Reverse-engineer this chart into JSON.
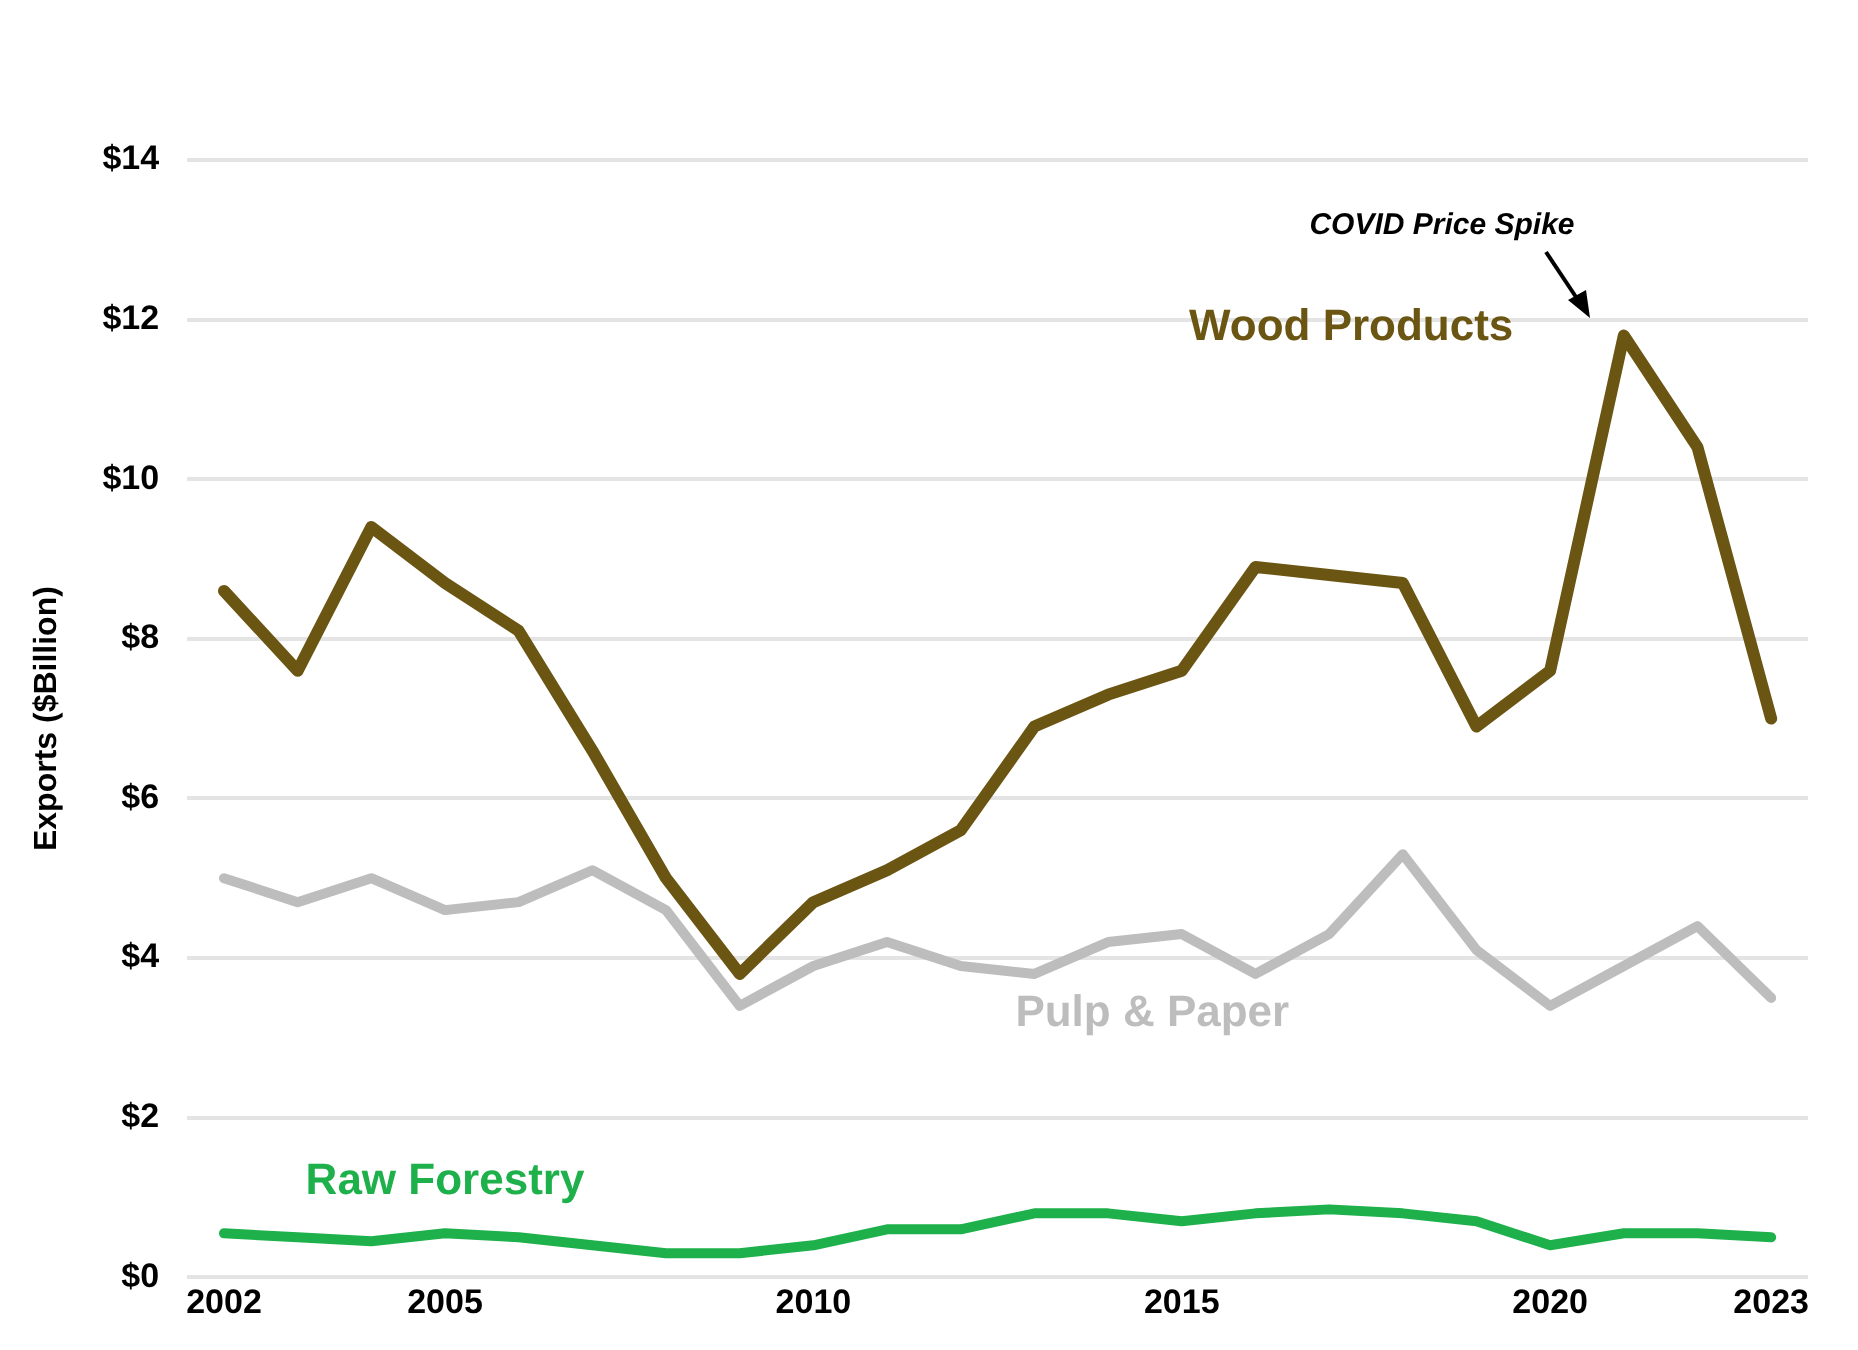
{
  "chart_data": {
    "type": "line",
    "ylabel": "Exports ($Billion)",
    "x": [
      2002,
      2003,
      2004,
      2005,
      2006,
      2007,
      2008,
      2009,
      2010,
      2011,
      2012,
      2013,
      2014,
      2015,
      2016,
      2017,
      2018,
      2019,
      2020,
      2021,
      2022,
      2023
    ],
    "xlim": [
      2001.5,
      2023.5
    ],
    "xticks": [
      2002,
      2005,
      2010,
      2015,
      2020,
      2023
    ],
    "ylim": [
      0,
      14
    ],
    "yticks": [
      {
        "value": 0,
        "label": "$0"
      },
      {
        "value": 2,
        "label": "$2"
      },
      {
        "value": 4,
        "label": "$4"
      },
      {
        "value": 6,
        "label": "$6"
      },
      {
        "value": 8,
        "label": "$8"
      },
      {
        "value": 10,
        "label": "$10"
      },
      {
        "value": 12,
        "label": "$12"
      },
      {
        "value": 14,
        "label": "$14"
      }
    ],
    "grid": "y",
    "legend": false,
    "marker": "none",
    "line_style": "solid",
    "series": [
      {
        "name": "Wood Products",
        "color": "#6b5512",
        "values": [
          8.6,
          7.6,
          9.4,
          8.7,
          8.1,
          6.6,
          5.0,
          3.8,
          4.7,
          5.1,
          5.6,
          6.9,
          7.3,
          7.6,
          8.9,
          8.8,
          8.7,
          6.9,
          7.6,
          11.8,
          10.4,
          7.0
        ]
      },
      {
        "name": "Pulp & Paper",
        "color": "#bdbdbd",
        "values": [
          5.0,
          4.7,
          5.0,
          4.6,
          4.7,
          5.1,
          4.6,
          3.4,
          3.9,
          4.2,
          3.9,
          3.8,
          4.2,
          4.3,
          3.8,
          4.3,
          5.3,
          4.1,
          3.4,
          3.9,
          4.4,
          3.5
        ]
      },
      {
        "name": "Raw Forestry",
        "color": "#1db04b",
        "values": [
          0.55,
          0.5,
          0.45,
          0.55,
          0.5,
          0.4,
          0.3,
          0.3,
          0.4,
          0.6,
          0.6,
          0.8,
          0.8,
          0.7,
          0.8,
          0.85,
          0.8,
          0.7,
          0.4,
          0.55,
          0.55,
          0.5
        ]
      }
    ],
    "annotations": [
      "COVID Price Spike"
    ]
  }
}
